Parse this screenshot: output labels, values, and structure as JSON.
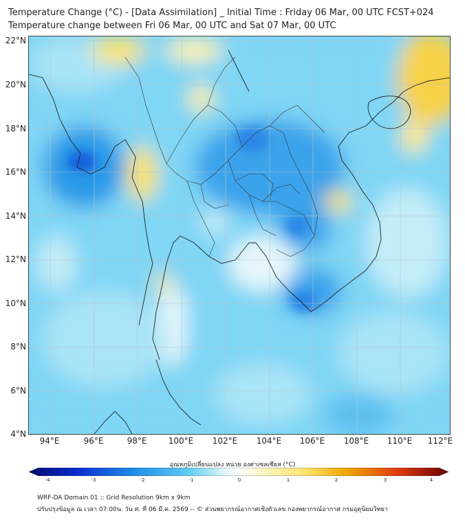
{
  "title": {
    "line1": "Temperature Change (°C) - [Data Assimilation] _ Initial Time : Friday 06 Mar, 00 UTC FCST+024",
    "line2": "Temperature change between Fri 06 Mar, 00 UTC and Sat 07 Mar, 00 UTC"
  },
  "axes": {
    "lat_labels": [
      "22°N",
      "20°N",
      "18°N",
      "16°N",
      "14°N",
      "12°N",
      "10°N",
      "8°N",
      "6°N",
      "4°N"
    ],
    "lon_labels": [
      "94°E",
      "96°E",
      "98°E",
      "100°E",
      "102°E",
      "104°E",
      "106°E",
      "108°E",
      "110°E",
      "112°E"
    ]
  },
  "colorbar": {
    "title": "อุณหภูมิเปลี่ยนแปลง หน่วย องศาเซลเซียส (°C)",
    "ticks": [
      "-4",
      "-3",
      "-2",
      "-1",
      "0",
      "1",
      "2",
      "3",
      "4"
    ]
  },
  "footer": {
    "line1": "WRF-DA Domain 01 :: Grid Resolution 9km x 9km",
    "line2": "ปรับปรุงข้อมูล ณ เวลา 07:00น. วัน ศ. ที่ 06 มี.ค. 2569 -- © ส่วนพยากรณ์อากาศเชิงตัวเลข กองพยากรณ์อากาศ กรมอุตุนิยมวิทยา"
  },
  "colors": {
    "cold_strong": "#0a2fd1",
    "cold": "#1f8de8",
    "cool": "#7fd6f5",
    "neutral": "#f4f9f8",
    "warm": "#fde36b",
    "hot": "#f0a400"
  }
}
